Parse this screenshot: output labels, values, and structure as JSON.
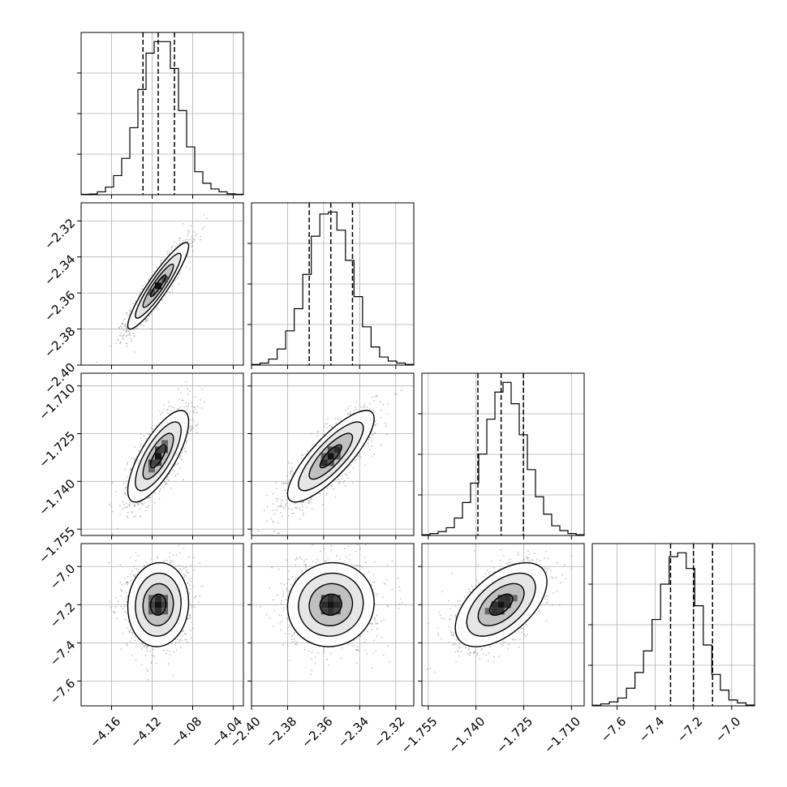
{
  "chart_data": {
    "type": "corner",
    "grid": true,
    "parameters": [
      {
        "range": [
          -4.19,
          -4.03
        ],
        "ticks": [
          -4.16,
          -4.12,
          -4.08,
          -4.04
        ],
        "tick_labels": [
          "−4.16",
          "−4.12",
          "−4.08",
          "−4.04"
        ],
        "quantiles": [
          -4.129,
          -4.114,
          -4.098
        ],
        "histogram": [
          0.2,
          0.4,
          1.5,
          4,
          10,
          19,
          35,
          55,
          74,
          80,
          80,
          66,
          44,
          25,
          12,
          6,
          3,
          1.5,
          0.5,
          0.2
        ]
      },
      {
        "range": [
          -2.4,
          -2.31
        ],
        "ticks": [
          -2.4,
          -2.38,
          -2.36,
          -2.34,
          -2.32
        ],
        "tick_labels": [
          "−2.40",
          "−2.38",
          "−2.36",
          "−2.34",
          "−2.32"
        ],
        "quantiles": [
          -2.368,
          -2.356,
          -2.344
        ],
        "histogram": [
          0.3,
          1,
          3,
          8,
          17,
          28,
          45,
          64,
          75,
          76,
          67,
          52,
          34,
          19,
          9,
          4,
          2,
          1,
          0.3
        ]
      },
      {
        "range": [
          -1.757,
          -1.706
        ],
        "ticks": [
          -1.755,
          -1.74,
          -1.725,
          -1.71
        ],
        "tick_labels": [
          "−1.755",
          "−1.740",
          "−1.725",
          "−1.710"
        ],
        "quantiles": [
          -1.7394,
          -1.7321,
          -1.7251
        ],
        "histogram": [
          0.4,
          1,
          2,
          4,
          9,
          17,
          27,
          42,
          60,
          74,
          79,
          68,
          52,
          34,
          20,
          11,
          5,
          2.5,
          1,
          0.4
        ]
      },
      {
        "range": [
          -7.73,
          -6.88
        ],
        "ticks": [
          -7.6,
          -7.4,
          -7.2,
          -7.0
        ],
        "tick_labels": [
          "−7.6",
          "−7.4",
          "−7.2",
          "−7.0"
        ],
        "quantiles": [
          -7.32,
          -7.2,
          -7.1
        ],
        "histogram": [
          0.3,
          1,
          2,
          4,
          9,
          17,
          28,
          44,
          62,
          76,
          78,
          70,
          51,
          31,
          16,
          8,
          3,
          1.5,
          0.4
        ]
      }
    ],
    "y_tick_parameters": [
      1,
      2,
      3
    ],
    "pairs": [
      {
        "row": 1,
        "col": 0,
        "center": [
          -4.114,
          -2.356
        ],
        "sigma": [
          0.015,
          0.012
        ],
        "rho": 0.92,
        "points": 1500
      },
      {
        "row": 2,
        "col": 0,
        "center": [
          -4.114,
          -1.7321
        ],
        "sigma": [
          0.015,
          0.0072
        ],
        "rho": 0.75,
        "points": 1500
      },
      {
        "row": 2,
        "col": 1,
        "center": [
          -2.356,
          -1.7321
        ],
        "sigma": [
          0.012,
          0.0072
        ],
        "rho": 0.82,
        "points": 1500
      },
      {
        "row": 3,
        "col": 0,
        "center": [
          -4.114,
          -7.2
        ],
        "sigma": [
          0.015,
          0.11
        ],
        "rho": 0.05,
        "points": 1500
      },
      {
        "row": 3,
        "col": 1,
        "center": [
          -2.356,
          -7.2
        ],
        "sigma": [
          0.012,
          0.11
        ],
        "rho": 0.05,
        "points": 1500
      },
      {
        "row": 3,
        "col": 2,
        "center": [
          -1.7321,
          -7.2
        ],
        "sigma": [
          0.0072,
          0.11
        ],
        "rho": 0.55,
        "points": 1500
      }
    ],
    "contour_levels_sigma": [
      0.5,
      1.0,
      1.5,
      2.0
    ],
    "colors": {
      "axes": "#000000",
      "grid": "#b0b0b0",
      "scatter": "#9a9a9a",
      "density": "#000000",
      "line": "#000000"
    }
  }
}
